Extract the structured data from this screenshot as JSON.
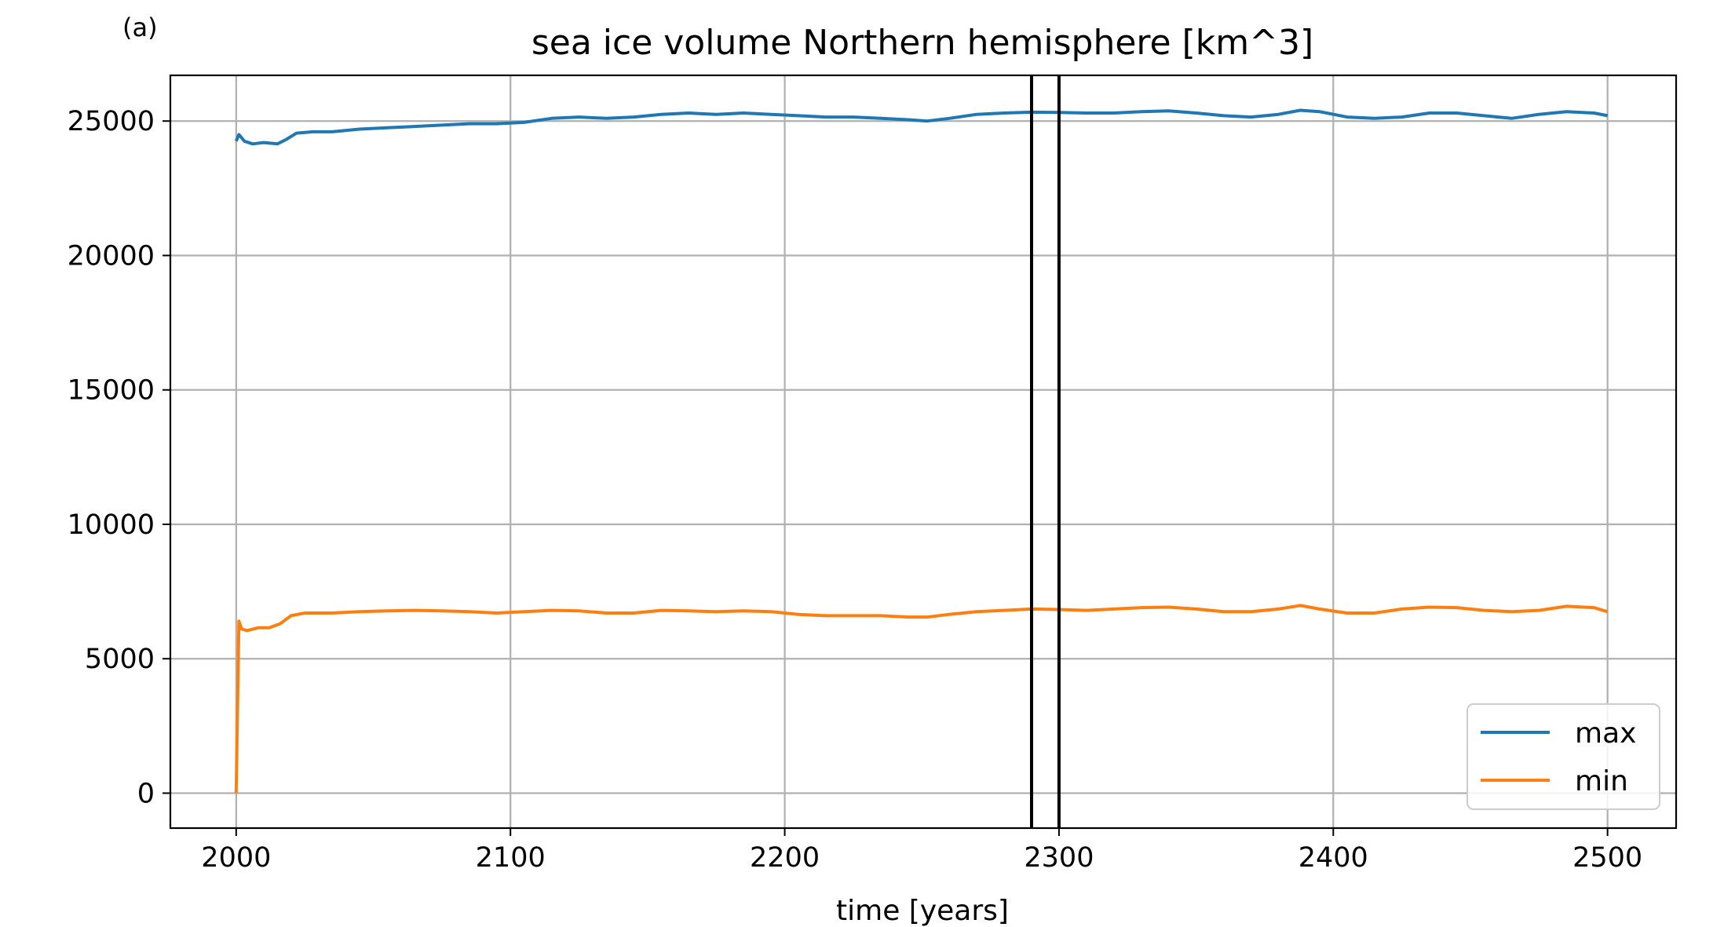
{
  "chart_data": {
    "type": "line",
    "panel_label": "(a)",
    "title": "sea ice volume Northern hemisphere [km^3]",
    "xlabel": "time [years]",
    "ylabel": "",
    "xlim": [
      1976,
      2525
    ],
    "ylim": [
      -1300,
      26700
    ],
    "xticks": [
      2000,
      2100,
      2200,
      2300,
      2400,
      2500
    ],
    "xtick_labels": [
      "2000",
      "2100",
      "2200",
      "2300",
      "2400",
      "2500"
    ],
    "yticks": [
      0,
      5000,
      10000,
      15000,
      20000,
      25000
    ],
    "ytick_labels": [
      "0",
      "5000",
      "10000",
      "15000",
      "20000",
      "25000"
    ],
    "grid": true,
    "legend_position": "lower-right",
    "vertical_lines": [
      2290,
      2300
    ],
    "series": [
      {
        "name": "max",
        "color": "#1f77b4",
        "x": [
          2000,
          2001,
          2003,
          2006,
          2010,
          2015,
          2018,
          2022,
          2028,
          2035,
          2045,
          2055,
          2065,
          2075,
          2085,
          2095,
          2105,
          2115,
          2125,
          2135,
          2145,
          2155,
          2165,
          2175,
          2185,
          2195,
          2205,
          2215,
          2225,
          2235,
          2245,
          2252,
          2260,
          2270,
          2280,
          2290,
          2300,
          2310,
          2320,
          2330,
          2340,
          2350,
          2360,
          2370,
          2380,
          2388,
          2395,
          2405,
          2415,
          2425,
          2435,
          2445,
          2455,
          2465,
          2475,
          2485,
          2495,
          2500
        ],
        "values": [
          24250,
          24500,
          24250,
          24150,
          24200,
          24150,
          24300,
          24550,
          24600,
          24600,
          24700,
          24750,
          24800,
          24850,
          24900,
          24900,
          24950,
          25100,
          25150,
          25100,
          25150,
          25250,
          25300,
          25250,
          25300,
          25250,
          25200,
          25150,
          25150,
          25100,
          25050,
          25000,
          25100,
          25250,
          25300,
          25330,
          25320,
          25300,
          25300,
          25350,
          25380,
          25300,
          25200,
          25150,
          25250,
          25400,
          25350,
          25150,
          25100,
          25150,
          25300,
          25300,
          25200,
          25100,
          25250,
          25350,
          25300,
          25200
        ]
      },
      {
        "name": "min",
        "color": "#ff7f0e",
        "x": [
          2000,
          2001,
          2002,
          2004,
          2008,
          2012,
          2016,
          2020,
          2025,
          2035,
          2045,
          2055,
          2065,
          2075,
          2085,
          2095,
          2105,
          2115,
          2125,
          2135,
          2145,
          2155,
          2165,
          2175,
          2185,
          2195,
          2205,
          2215,
          2225,
          2235,
          2245,
          2252,
          2260,
          2270,
          2280,
          2290,
          2300,
          2310,
          2320,
          2330,
          2340,
          2350,
          2360,
          2370,
          2380,
          2388,
          2395,
          2405,
          2415,
          2425,
          2435,
          2445,
          2455,
          2465,
          2475,
          2485,
          2495,
          2500
        ],
        "values": [
          0,
          6400,
          6100,
          6050,
          6150,
          6150,
          6300,
          6600,
          6700,
          6700,
          6750,
          6780,
          6800,
          6780,
          6750,
          6700,
          6750,
          6800,
          6780,
          6700,
          6700,
          6800,
          6780,
          6750,
          6780,
          6750,
          6650,
          6600,
          6600,
          6600,
          6550,
          6550,
          6650,
          6750,
          6800,
          6850,
          6830,
          6800,
          6850,
          6900,
          6920,
          6850,
          6750,
          6750,
          6850,
          6980,
          6850,
          6700,
          6700,
          6850,
          6920,
          6900,
          6800,
          6750,
          6800,
          6950,
          6900,
          6750
        ]
      }
    ]
  }
}
